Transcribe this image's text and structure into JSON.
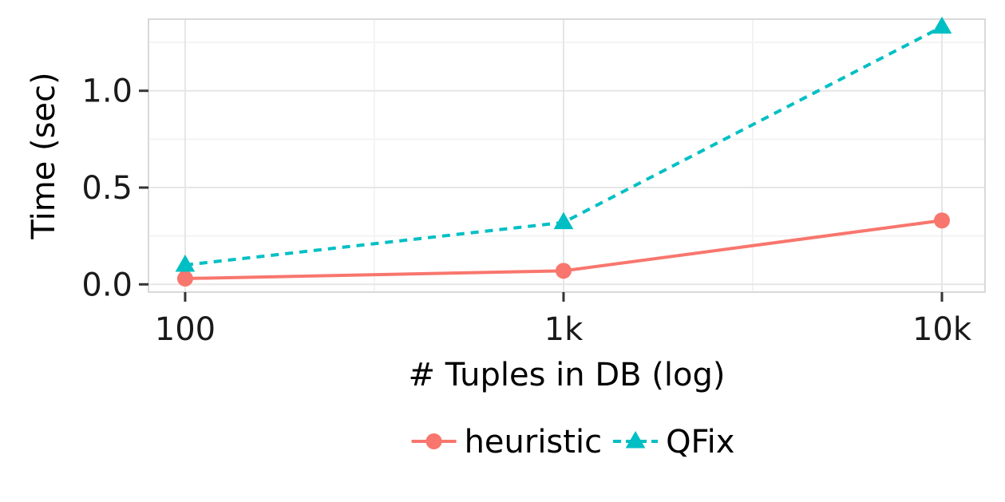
{
  "chart_data": {
    "type": "line",
    "x_scale": "log",
    "x": [
      100,
      1000,
      10000
    ],
    "x_tick_labels": [
      "100",
      "1k",
      "10k"
    ],
    "y_ticks": [
      0.0,
      0.5,
      1.0
    ],
    "y_tick_labels": [
      "0.0",
      "0.5",
      "1.0"
    ],
    "xlim": [
      80,
      13000
    ],
    "ylim": [
      -0.04,
      1.37
    ],
    "xlabel": "# Tuples in DB (log)",
    "ylabel": "Time (sec)",
    "grid": true,
    "legend_position": "bottom",
    "series": [
      {
        "name": "heuristic",
        "values": [
          0.03,
          0.07,
          0.33
        ],
        "color": "#F8766D",
        "line_style": "solid",
        "marker": "circle"
      },
      {
        "name": "QFix",
        "values": [
          0.1,
          0.32,
          1.33
        ],
        "color": "#00BFC4",
        "line_style": "dashed",
        "marker": "triangle"
      }
    ]
  }
}
